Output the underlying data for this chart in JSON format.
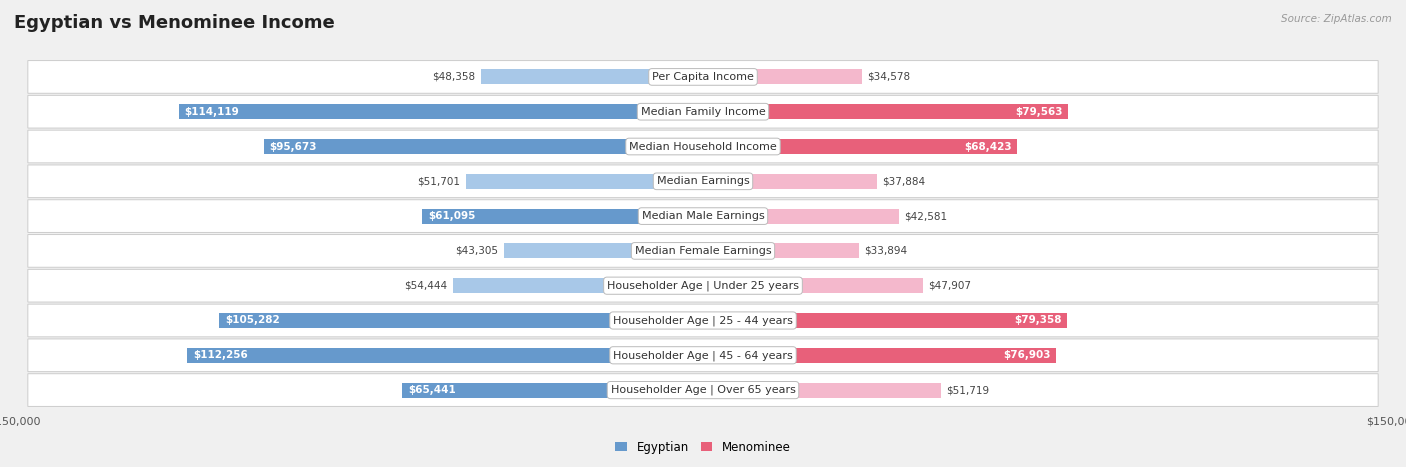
{
  "title": "Egyptian vs Menominee Income",
  "source": "Source: ZipAtlas.com",
  "categories": [
    "Per Capita Income",
    "Median Family Income",
    "Median Household Income",
    "Median Earnings",
    "Median Male Earnings",
    "Median Female Earnings",
    "Householder Age | Under 25 years",
    "Householder Age | 25 - 44 years",
    "Householder Age | 45 - 64 years",
    "Householder Age | Over 65 years"
  ],
  "egyptian_values": [
    48358,
    114119,
    95673,
    51701,
    61095,
    43305,
    54444,
    105282,
    112256,
    65441
  ],
  "menominee_values": [
    34578,
    79563,
    68423,
    37884,
    42581,
    33894,
    47907,
    79358,
    76903,
    51719
  ],
  "egyptian_labels": [
    "$48,358",
    "$114,119",
    "$95,673",
    "$51,701",
    "$61,095",
    "$43,305",
    "$54,444",
    "$105,282",
    "$112,256",
    "$65,441"
  ],
  "menominee_labels": [
    "$34,578",
    "$79,563",
    "$68,423",
    "$37,884",
    "$42,581",
    "$33,894",
    "$47,907",
    "$79,358",
    "$76,903",
    "$51,719"
  ],
  "egyptian_color_light": "#a8c8e8",
  "egyptian_color_dark": "#6699cc",
  "menominee_color_light": "#f4b8cc",
  "menominee_color_dark": "#e8607a",
  "max_value": 150000,
  "bg_color": "#f0f0f0",
  "row_bg_color": "#ffffff",
  "row_border_color": "#cccccc",
  "title_fontsize": 13,
  "label_fontsize": 8,
  "value_fontsize": 7.5,
  "axis_label_fontsize": 8,
  "eg_inside_threshold": 60000,
  "mn_inside_threshold": 60000
}
